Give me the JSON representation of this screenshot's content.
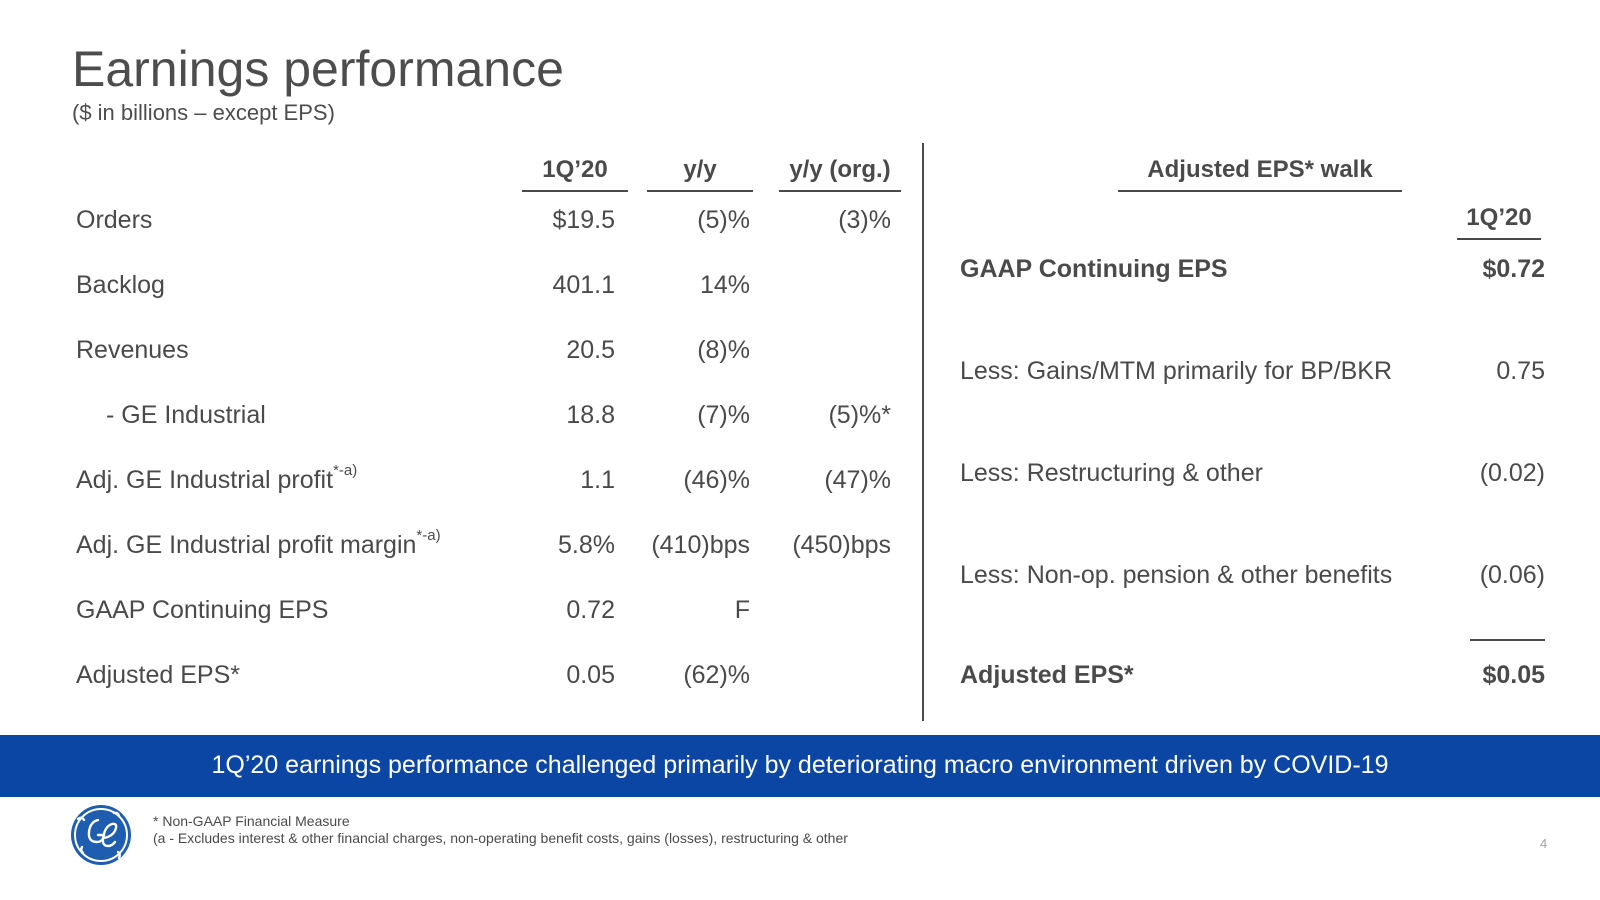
{
  "title": "Earnings performance",
  "subtitle": "($ in billions – except EPS)",
  "table": {
    "headers": [
      "1Q’20",
      "y/y",
      "y/y (org.)"
    ],
    "rows": [
      {
        "label": "Orders",
        "sup": "",
        "q": "$19.5",
        "yy": "(5)%",
        "org": "(3)%"
      },
      {
        "label": "Backlog",
        "sup": "",
        "q": "401.1",
        "yy": "14%",
        "org": ""
      },
      {
        "label": "Revenues",
        "sup": "",
        "q": "20.5",
        "yy": "(8)%",
        "org": ""
      },
      {
        "label": "- GE Industrial",
        "sup": "",
        "q": "18.8",
        "yy": "(7)%",
        "org": "(5)%*"
      },
      {
        "label": "Adj. GE Industrial profit",
        "sup": "*-a)",
        "q": "1.1",
        "yy": "(46)%",
        "org": "(47)%"
      },
      {
        "label": "Adj. GE Industrial profit margin",
        "sup": "*-a)",
        "q": "5.8%",
        "yy": "(410)bps",
        "org": "(450)bps"
      },
      {
        "label": "GAAP Continuing EPS",
        "sup": "",
        "q": "0.72",
        "yy": "F",
        "org": ""
      },
      {
        "label": "Adjusted EPS*",
        "sup": "",
        "q": "0.05",
        "yy": "(62)%",
        "org": ""
      }
    ]
  },
  "walk": {
    "title": "Adjusted EPS* walk",
    "column": "1Q’20",
    "rows": [
      {
        "label": "GAAP Continuing EPS",
        "value": "$0.72"
      },
      {
        "label": "Less: Gains/MTM primarily for BP/BKR",
        "value": "0.75"
      },
      {
        "label": "Less: Restructuring & other",
        "value": "(0.02)"
      },
      {
        "label": "Less: Non-op. pension & other benefits",
        "value": "(0.06)"
      },
      {
        "label": "Adjusted EPS*",
        "value": "$0.05"
      }
    ]
  },
  "banner": "1Q’20 earnings performance challenged primarily by deteriorating macro environment driven by COVID-19",
  "footnotes": [
    "* Non-GAAP Financial Measure",
    "(a - Excludes interest & other financial charges, non-operating benefit costs, gains (losses), restructuring & other"
  ],
  "page_number": "4",
  "colors": {
    "banner": "#0b46a4",
    "text": "#4a4a4a",
    "logo": "#1f5db0"
  },
  "logo_icon": "ge-monogram-logo"
}
